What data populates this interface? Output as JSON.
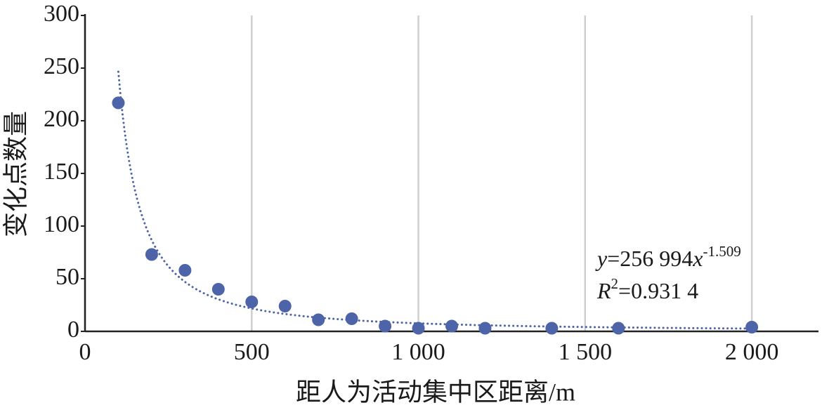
{
  "chart_data": {
    "type": "scatter",
    "x_label": "距人为活动集中区距离/m",
    "y_label": "变化点数量",
    "x": [
      100,
      200,
      300,
      400,
      500,
      600,
      700,
      800,
      900,
      1000,
      1100,
      1200,
      1400,
      1600,
      2000
    ],
    "values": [
      217,
      73,
      58,
      40,
      28,
      24,
      11,
      12,
      5,
      3,
      5,
      3,
      3,
      3,
      4
    ],
    "color": "#4d64a8",
    "xlim": [
      0,
      2200
    ],
    "ylim": [
      0,
      300
    ],
    "xticks": [
      0,
      500,
      {
        "value": 1000,
        "label": "1 000"
      },
      {
        "value": 1500,
        "label": "1 500"
      },
      {
        "value": 2000,
        "label": "2 000"
      }
    ],
    "yticks": [
      0,
      50,
      100,
      150,
      200,
      250,
      300
    ],
    "grid": "x",
    "trend": {
      "lhs": "y",
      "eq": "=",
      "coefficient": {
        "value": 256994,
        "label": "256 994"
      },
      "variable": "x",
      "exponent": -1.509,
      "r2_symbol": "R",
      "r2_power": "2",
      "r2": {
        "value": 0.9314,
        "label": "0.931 4"
      }
    }
  }
}
